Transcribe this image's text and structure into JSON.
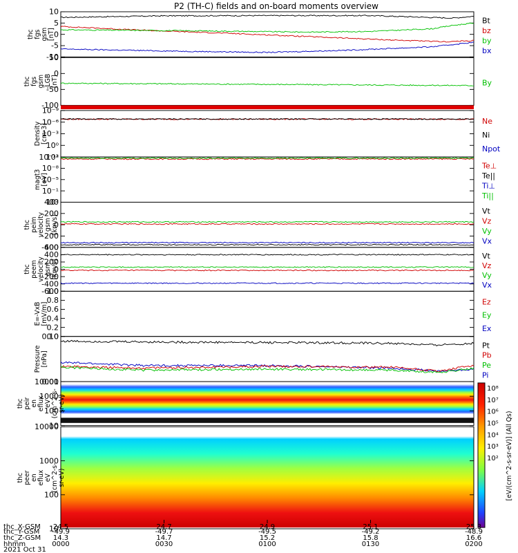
{
  "chart_data": {
    "title": "P2 (TH-C) fields and on-board moments overview",
    "type": "line",
    "panels": [
      {
        "ylabel": [
          "thc",
          "fgs",
          "gsm",
          "[nT]"
        ],
        "yticks": [
          "10",
          "5",
          "0",
          "-5",
          "-10"
        ],
        "ylim": [
          -10,
          10
        ],
        "legend": [
          {
            "name": "Bt",
            "color": "#000000"
          },
          {
            "name": "bz",
            "color": "#d00000"
          },
          {
            "name": "by",
            "color": "#00c000"
          },
          {
            "name": "bx",
            "color": "#0000c0"
          }
        ],
        "series": [
          {
            "name": "Bt",
            "color": "#000000",
            "x": [
              0,
              0.25,
              0.5,
              0.75,
              0.95,
              1.0
            ],
            "y": [
              7.5,
              8.2,
              8.3,
              8.3,
              7.2,
              8.0
            ]
          },
          {
            "name": "bz",
            "color": "#d00000",
            "x": [
              0,
              0.2,
              0.4,
              0.6,
              0.8,
              0.93,
              1.0
            ],
            "y": [
              3.5,
              1.8,
              0.5,
              -1.0,
              -2.5,
              -3.3,
              -2.8
            ]
          },
          {
            "name": "by",
            "color": "#00c000",
            "x": [
              0,
              0.3,
              0.6,
              0.75,
              0.9,
              0.95,
              1.0
            ],
            "y": [
              2.0,
              1.6,
              1.0,
              1.3,
              2.5,
              4.0,
              5.0
            ]
          },
          {
            "name": "bx",
            "color": "#0000c0",
            "x": [
              0,
              0.3,
              0.5,
              0.7,
              0.9,
              1.0
            ],
            "y": [
              -6.5,
              -7.5,
              -8.0,
              -7.0,
              -5.5,
              -3.5
            ]
          }
        ]
      },
      {
        "ylabel": [
          "thc",
          "fgs",
          "gsm",
          "-LGB",
          "[nT]"
        ],
        "yticks": [
          "50",
          "0",
          "-50",
          "-100"
        ],
        "ylim": [
          -130,
          75
        ],
        "legend": [
          {
            "name": "By",
            "color": "#00c000"
          }
        ],
        "series": [
          {
            "name": "By",
            "color": "#00c000",
            "x": [
              0,
              1.0
            ],
            "y": [
              -35,
              -45
            ]
          }
        ]
      },
      {
        "ylabel": [
          "Density",
          "[cm-3]"
        ],
        "yticks": [
          "10⁻⁹",
          "10⁻⁶",
          "10⁻³",
          "10⁰",
          "10³"
        ],
        "ylim": [
          -12,
          3
        ],
        "legend": [
          {
            "name": "Ne",
            "color": "#d00000"
          },
          {
            "name": "Ni",
            "color": "#000000"
          },
          {
            "name": "Npot",
            "color": "#0000c0"
          }
        ],
        "series": [
          {
            "name": "Ne",
            "color": "#d00000",
            "x": [
              0,
              1.0
            ],
            "y": [
              0.2,
              0.2
            ]
          },
          {
            "name": "Ni",
            "color": "#000000",
            "x": [
              0,
              1.0
            ],
            "y": [
              0.25,
              0.25
            ]
          }
        ]
      },
      {
        "ylabel": [
          "magt3",
          "[eV]"
        ],
        "yticks": [
          "10⁻¹²",
          "10⁻⁸",
          "10⁻⁵",
          "10⁻¹",
          "10²"
        ],
        "ylim": [
          -13,
          3
        ],
        "legend": [
          {
            "name": "Te⊥",
            "color": "#d00000"
          },
          {
            "name": "Te||",
            "color": "#000000"
          },
          {
            "name": "Ti⊥",
            "color": "#0000c0"
          },
          {
            "name": "Ti||",
            "color": "#00c000"
          }
        ],
        "series": [
          {
            "name": "Te⊥",
            "color": "#d00000",
            "x": [
              0,
              1.0
            ],
            "y": [
              2.3,
              2.3
            ]
          },
          {
            "name": "Ti||",
            "color": "#00c000",
            "x": [
              0,
              1.0
            ],
            "y": [
              2.6,
              2.6
            ]
          }
        ]
      },
      {
        "ylabel": [
          "thc",
          "peim",
          "velocity",
          "gsm",
          "[km/s]"
        ],
        "yticks": [
          "400",
          "200",
          "0",
          "-200",
          "-400"
        ],
        "ylim": [
          -450,
          420
        ],
        "legend": [
          {
            "name": "Vt",
            "color": "#000000"
          },
          {
            "name": "Vz",
            "color": "#d00000"
          },
          {
            "name": "Vy",
            "color": "#00c000"
          },
          {
            "name": "Vx",
            "color": "#0000c0"
          }
        ],
        "series": [
          {
            "name": "Vy",
            "color": "#00c000",
            "x": [
              0,
              1.0
            ],
            "y": [
              40,
              40
            ]
          },
          {
            "name": "Vz",
            "color": "#d00000",
            "x": [
              0,
              1.0
            ],
            "y": [
              0,
              0
            ]
          },
          {
            "name": "Vx",
            "color": "#0000c0",
            "x": [
              0,
              1.0
            ],
            "y": [
              -360,
              -360
            ]
          },
          {
            "name": "Vt",
            "color": "#000000",
            "x": [
              0,
              1.0
            ],
            "y": [
              -400,
              -400
            ]
          }
        ]
      },
      {
        "ylabel": [
          "thc",
          "peem",
          "velocity",
          "gsm",
          "[km/s]"
        ],
        "yticks": [
          "600",
          "400",
          "200",
          "0",
          "-200",
          "-400",
          "-600"
        ],
        "ylim": [
          -600,
          600
        ],
        "legend": [
          {
            "name": "Vt",
            "color": "#000000"
          },
          {
            "name": "Vz",
            "color": "#d00000"
          },
          {
            "name": "Vy",
            "color": "#00c000"
          },
          {
            "name": "Vx",
            "color": "#0000c0"
          }
        ],
        "series": [
          {
            "name": "Vt",
            "color": "#000000",
            "x": [
              0,
              1.0
            ],
            "y": [
              400,
              400
            ]
          },
          {
            "name": "Vy",
            "color": "#00c000",
            "x": [
              0,
              1.0
            ],
            "y": [
              60,
              60
            ]
          },
          {
            "name": "Vz",
            "color": "#d00000",
            "x": [
              0,
              1.0
            ],
            "y": [
              -30,
              -30
            ]
          },
          {
            "name": "Vx",
            "color": "#0000c0",
            "x": [
              0,
              1.0
            ],
            "y": [
              -380,
              -380
            ]
          }
        ]
      },
      {
        "ylabel": [
          "E=-VxB",
          "[mV/m]"
        ],
        "yticks": [
          "1.0",
          "0.8",
          "0.6",
          "0.4",
          "0.2",
          "0.0"
        ],
        "ylim": [
          0,
          1
        ],
        "legend": [
          {
            "name": "Ez",
            "color": "#d00000"
          },
          {
            "name": "Ey",
            "color": "#00c000"
          },
          {
            "name": "Ex",
            "color": "#0000c0"
          }
        ],
        "series": []
      },
      {
        "ylabel": [
          "Pressure",
          "[nPa]"
        ],
        "yticks": [
          "0.10",
          "0.01"
        ],
        "ylim": [
          0.009,
          0.11
        ],
        "scale": "log",
        "legend": [
          {
            "name": "Pt",
            "color": "#000000"
          },
          {
            "name": "Pb",
            "color": "#d00000"
          },
          {
            "name": "Pe",
            "color": "#00c000"
          },
          {
            "name": "Pi",
            "color": "#0000c0"
          }
        ],
        "series": [
          {
            "name": "Pt",
            "color": "#000000",
            "x": [
              0,
              0.3,
              0.6,
              0.8,
              0.9,
              1.0
            ],
            "y": [
              0.085,
              0.08,
              0.078,
              0.075,
              0.068,
              0.075
            ]
          },
          {
            "name": "Pi",
            "color": "#0000c0",
            "x": [
              0,
              0.2,
              0.5,
              0.8,
              0.92,
              1.0
            ],
            "y": [
              0.026,
              0.022,
              0.022,
              0.019,
              0.016,
              0.018
            ]
          },
          {
            "name": "Pb",
            "color": "#d00000",
            "x": [
              0,
              0.2,
              0.5,
              0.8,
              0.92,
              1.0
            ],
            "y": [
              0.021,
              0.019,
              0.021,
              0.02,
              0.016,
              0.022
            ]
          },
          {
            "name": "Pe",
            "color": "#00c000",
            "x": [
              0,
              0.2,
              0.5,
              0.8,
              0.92,
              1.0
            ],
            "y": [
              0.02,
              0.017,
              0.018,
              0.017,
              0.015,
              0.019
            ]
          }
        ]
      },
      {
        "type": "heatmap",
        "ylabel": [
          "thc",
          "peir",
          "en",
          "eflux",
          "eV",
          "(cm^2-s-",
          "sr-eV)"
        ],
        "yticks": [
          "10000",
          "1000",
          "100",
          "10"
        ],
        "ylim": [
          5,
          15000
        ]
      },
      {
        "type": "heatmap",
        "ylabel": [
          "thc",
          "peer",
          "en",
          "eflux",
          "eV",
          "(cm^2-s-",
          "sr-eV)"
        ],
        "yticks": [
          "10000",
          "1000",
          "100",
          "10"
        ],
        "ylim": [
          5,
          15000
        ]
      }
    ],
    "colorbar": {
      "ticks": [
        "10⁸",
        "10⁷",
        "10⁶",
        "10⁵",
        "10⁴",
        "10³",
        "10²"
      ],
      "label_upper": "[eV/(cm^2-s-sr-eV)] (All Qs)",
      "label_lower": "[eV/(cm^2-s-sr-eV)]"
    },
    "x_axis": {
      "row_labels": [
        "thc_X-GSM",
        "thc_Y-GSM",
        "thc_Z-GSM",
        "hhmm",
        "2021 Oct 31"
      ],
      "ticks": [
        {
          "x": "24.5",
          "y": "-49.9",
          "z": "14.3",
          "t": "0000"
        },
        {
          "x": "24.7",
          "y": "-49.7",
          "z": "14.7",
          "t": "0030"
        },
        {
          "x": "24.9",
          "y": "-49.5",
          "z": "15.2",
          "t": "0100"
        },
        {
          "x": "25.1",
          "y": "-49.2",
          "z": "15.8",
          "t": "0130"
        },
        {
          "x": "25.3",
          "y": "-48.9",
          "z": "16.6",
          "t": "0200"
        }
      ]
    }
  }
}
